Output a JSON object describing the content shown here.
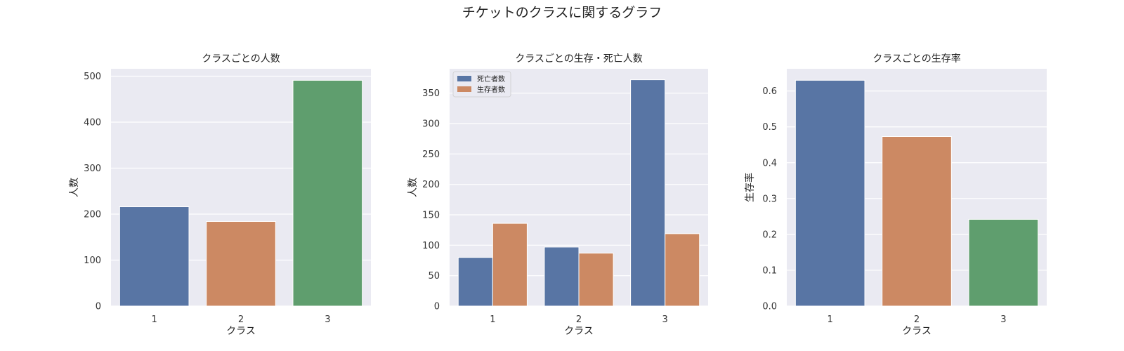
{
  "figure": {
    "suptitle": "チケットのクラスに関するグラフ"
  },
  "colors": {
    "blue": "#5875a4",
    "orange": "#cc8963",
    "green": "#5f9e6e"
  },
  "chart_data": [
    {
      "type": "bar",
      "title": "クラスごとの人数",
      "xlabel": "クラス",
      "ylabel": "人数",
      "categories": [
        "1",
        "2",
        "3"
      ],
      "values": [
        216,
        184,
        491
      ],
      "bar_colors": [
        "blue",
        "orange",
        "green"
      ],
      "ylim": [
        0,
        516
      ],
      "yticks": [
        0,
        100,
        200,
        300,
        400,
        500
      ],
      "grid": true
    },
    {
      "type": "bar",
      "title": "クラスごとの生存・死亡人数",
      "xlabel": "クラス",
      "ylabel": "人数",
      "categories": [
        "1",
        "2",
        "3"
      ],
      "series": [
        {
          "name": "死亡者数",
          "values": [
            80,
            97,
            372
          ],
          "color": "blue"
        },
        {
          "name": "生存者数",
          "values": [
            136,
            87,
            119
          ],
          "color": "orange"
        }
      ],
      "legend": "top-left",
      "ylim": [
        0,
        390
      ],
      "yticks": [
        0,
        50,
        100,
        150,
        200,
        250,
        300,
        350
      ],
      "grid": true
    },
    {
      "type": "bar",
      "title": "クラスごとの生存率",
      "xlabel": "クラス",
      "ylabel": "生存率",
      "categories": [
        "1",
        "2",
        "3"
      ],
      "values": [
        0.63,
        0.473,
        0.242
      ],
      "bar_colors": [
        "blue",
        "orange",
        "green"
      ],
      "ylim": [
        0,
        0.662
      ],
      "yticks": [
        "0.0",
        "0.1",
        "0.2",
        "0.3",
        "0.4",
        "0.5",
        "0.6"
      ],
      "grid": true
    }
  ]
}
